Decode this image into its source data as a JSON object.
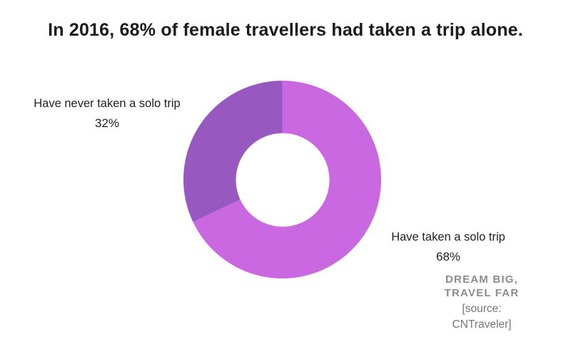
{
  "title": "In 2016, 68% of female travellers had taken a trip alone.",
  "chart_data": {
    "type": "pie",
    "style": "donut",
    "title": "In 2016, 68% of female travellers had taken a trip alone.",
    "categories": [
      "Have taken a solo trip",
      "Have never taken a solo trip"
    ],
    "values": [
      68,
      32
    ],
    "unit": "%",
    "colors": [
      "#ca68e2",
      "#9758c0"
    ],
    "start_angle_deg": 0,
    "direction": "clockwise",
    "hole_ratio": 0.47,
    "legend_position": "none",
    "labels": [
      {
        "text": "Have taken a solo trip",
        "value_label": "68%",
        "position": "right"
      },
      {
        "text": "Have never taken a solo trip",
        "value_label": "32%",
        "position": "left"
      }
    ]
  },
  "watermark": {
    "line1": "Dream big,",
    "line2": "Travel far"
  },
  "source": {
    "line1": "[source:",
    "line2": "CNTraveler]"
  }
}
